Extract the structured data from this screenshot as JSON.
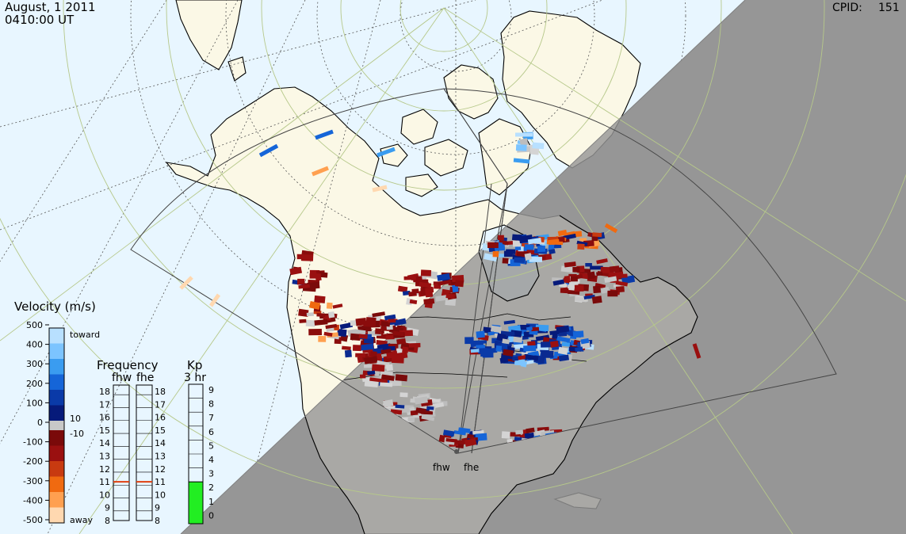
{
  "header": {
    "date": "August, 1 2011",
    "time": "0410:00 UT",
    "cpid_label": "CPID:",
    "cpid_value": "151"
  },
  "velocity_scale": {
    "title": "Velocity (m/s)",
    "toward_label": "toward",
    "away_label": "away",
    "ticks": [
      "500",
      "400",
      "300",
      "200",
      "100",
      "0",
      "-100",
      "-200",
      "-300",
      "-400",
      "-500"
    ],
    "ground_labels": [
      "10",
      "-10"
    ],
    "colors_toward": [
      "#b8e0ff",
      "#7cc4ff",
      "#3a9cf0",
      "#1565d8",
      "#0a3aa8",
      "#061a7a"
    ],
    "colors_away": [
      "#7a0a0a",
      "#9a1010",
      "#c83a10",
      "#f06a10",
      "#ffa050",
      "#ffd8b0"
    ]
  },
  "frequency": {
    "title": "Frequency",
    "radars": [
      "fhw",
      "fhe"
    ],
    "ticks": [
      "18",
      "17",
      "16",
      "15",
      "14",
      "13",
      "12",
      "11",
      "10",
      "9",
      "8"
    ],
    "fhw_mhz": 11,
    "fhe_mhz": 11,
    "marker_color": "#e04010"
  },
  "kp": {
    "title": "Kp",
    "subtitle": "3 hr",
    "ticks": [
      "9",
      "8",
      "7",
      "6",
      "5",
      "4",
      "3",
      "2",
      "1",
      "0"
    ],
    "value": 3,
    "fill_color": "#22ee22"
  },
  "map": {
    "radar_sites": [
      "fhw",
      "fhe"
    ],
    "colors": {
      "ocean_day": "#e8f6ff",
      "land_day": "#fbf8e6",
      "night": "#969696",
      "ground_scatter": "#c8c8c8"
    }
  }
}
